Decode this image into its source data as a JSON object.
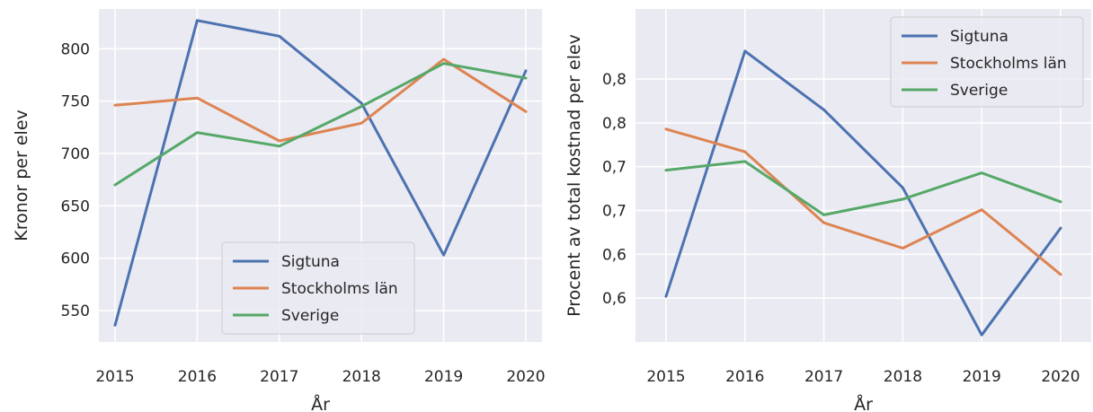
{
  "chart_data": [
    {
      "type": "line",
      "x": [
        2015,
        2016,
        2017,
        2018,
        2019,
        2020
      ],
      "xlabel": "År",
      "ylabel": "Kronor per elev",
      "ylim": [
        520,
        838
      ],
      "yticks": [
        550,
        600,
        650,
        700,
        750,
        800
      ],
      "ytick_labels": [
        "550",
        "600",
        "650",
        "700",
        "750",
        "800"
      ],
      "grid": true,
      "legend": "bottom-center",
      "series": [
        {
          "name": "Sigtuna",
          "color": "#4c72b0",
          "values": [
            536,
            827,
            812,
            748,
            603,
            779
          ]
        },
        {
          "name": "Stockholms län",
          "color": "#dd8452",
          "values": [
            746,
            753,
            712,
            729,
            790,
            740
          ]
        },
        {
          "name": "Sverige",
          "color": "#55a868",
          "values": [
            670,
            720,
            707,
            745,
            786,
            772
          ]
        }
      ]
    },
    {
      "type": "line",
      "x": [
        2015,
        2016,
        2017,
        2018,
        2019,
        2020
      ],
      "xlabel": "År",
      "ylabel": "Procent av total kostnad per elev",
      "ylim": [
        0.5,
        0.88
      ],
      "yticks": [
        0.55,
        0.6,
        0.65,
        0.7,
        0.75,
        0.8
      ],
      "ytick_labels": [
        "0,6",
        "0,6",
        "0,7",
        "0,7",
        "0,8",
        "0,8"
      ],
      "grid": true,
      "legend": "top-right",
      "series": [
        {
          "name": "Sigtuna",
          "color": "#4c72b0",
          "values": [
            0.552,
            0.832,
            0.765,
            0.676,
            0.508,
            0.63
          ]
        },
        {
          "name": "Stockholms län",
          "color": "#dd8452",
          "values": [
            0.743,
            0.717,
            0.636,
            0.607,
            0.651,
            0.577
          ]
        },
        {
          "name": "Sverige",
          "color": "#55a868",
          "values": [
            0.696,
            0.706,
            0.645,
            0.663,
            0.693,
            0.66
          ]
        }
      ]
    }
  ]
}
